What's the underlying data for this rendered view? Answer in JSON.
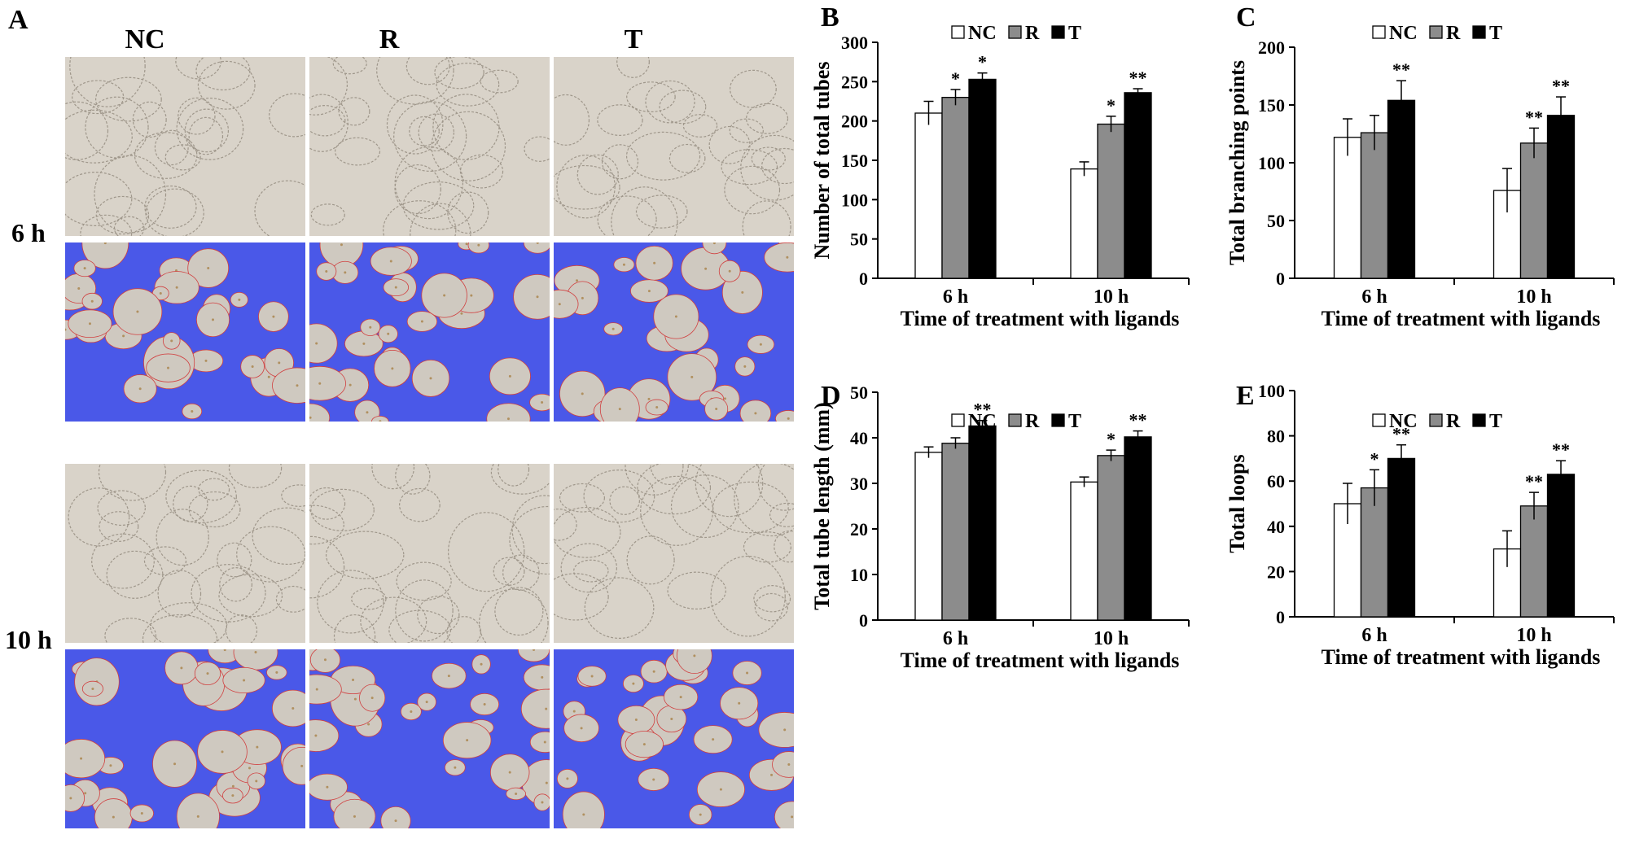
{
  "panel_a": {
    "letter": "A",
    "columns": [
      "NC",
      "R",
      "T"
    ],
    "rows": [
      "6 h",
      "10 h"
    ]
  },
  "colors": {
    "NC": "#ffffff",
    "R": "#8c8c8c",
    "T": "#000000",
    "brightfield": "#d9d3c9",
    "overlay_blue": "#4a58e8",
    "overlay_cell": "#cfc9c0"
  },
  "chart_data": [
    {
      "type": "bar",
      "panel": "B",
      "categories": [
        "6 h",
        "10 h"
      ],
      "series": [
        {
          "name": "NC",
          "values": [
            210,
            139
          ],
          "errors": [
            15,
            9
          ],
          "sig": [
            "",
            ""
          ]
        },
        {
          "name": "R",
          "values": [
            230,
            196
          ],
          "errors": [
            10,
            10
          ],
          "sig": [
            "*",
            "*"
          ]
        },
        {
          "name": "T",
          "values": [
            253,
            236
          ],
          "errors": [
            8,
            5
          ],
          "sig": [
            "*",
            "**"
          ]
        }
      ],
      "xlabel": "Time of treatment with ligands",
      "ylabel": "Number of total tubes",
      "ylim": [
        0,
        300
      ],
      "yticks": [
        0,
        50,
        100,
        150,
        200,
        250,
        300
      ],
      "legend": "top-center"
    },
    {
      "type": "bar",
      "panel": "C",
      "categories": [
        "6 h",
        "10 h"
      ],
      "series": [
        {
          "name": "NC",
          "values": [
            122,
            76
          ],
          "errors": [
            16,
            19
          ],
          "sig": [
            "",
            ""
          ]
        },
        {
          "name": "R",
          "values": [
            126,
            117
          ],
          "errors": [
            15,
            13
          ],
          "sig": [
            "",
            "**"
          ]
        },
        {
          "name": "T",
          "values": [
            154,
            141
          ],
          "errors": [
            17,
            16
          ],
          "sig": [
            "**",
            "**"
          ]
        }
      ],
      "xlabel": "Time of treatment with ligands",
      "ylabel": "Total branching points",
      "ylim": [
        0,
        200
      ],
      "yticks": [
        0,
        50,
        100,
        150,
        200
      ],
      "legend": "top-center"
    },
    {
      "type": "bar",
      "panel": "D",
      "categories": [
        "6 h",
        "10 h"
      ],
      "series": [
        {
          "name": "NC",
          "values": [
            36.8,
            30.3
          ],
          "errors": [
            1.2,
            1.1
          ],
          "sig": [
            "",
            ""
          ]
        },
        {
          "name": "R",
          "values": [
            38.8,
            36.1
          ],
          "errors": [
            1.2,
            1.2
          ],
          "sig": [
            "",
            "*"
          ]
        },
        {
          "name": "T",
          "values": [
            42.6,
            40.2
          ],
          "errors": [
            1.2,
            1.3
          ],
          "sig": [
            "**",
            "**"
          ]
        }
      ],
      "xlabel": "Time of treatment with ligands",
      "ylabel": "Total tube length (mm)",
      "ylim": [
        0,
        50
      ],
      "yticks": [
        0,
        10,
        20,
        30,
        40,
        50
      ],
      "legend": "top-center"
    },
    {
      "type": "bar",
      "panel": "E",
      "categories": [
        "6 h",
        "10 h"
      ],
      "series": [
        {
          "name": "NC",
          "values": [
            50,
            30
          ],
          "errors": [
            9,
            8
          ],
          "sig": [
            "",
            ""
          ]
        },
        {
          "name": "R",
          "values": [
            57,
            49
          ],
          "errors": [
            8,
            6
          ],
          "sig": [
            "*",
            "**"
          ]
        },
        {
          "name": "T",
          "values": [
            70,
            63
          ],
          "errors": [
            6,
            6
          ],
          "sig": [
            "**",
            "**"
          ]
        }
      ],
      "xlabel": "Time of treatment with ligands",
      "ylabel": "Total loops",
      "ylim": [
        0,
        100
      ],
      "yticks": [
        0,
        20,
        40,
        60,
        80,
        100
      ],
      "legend": "top-center"
    }
  ]
}
